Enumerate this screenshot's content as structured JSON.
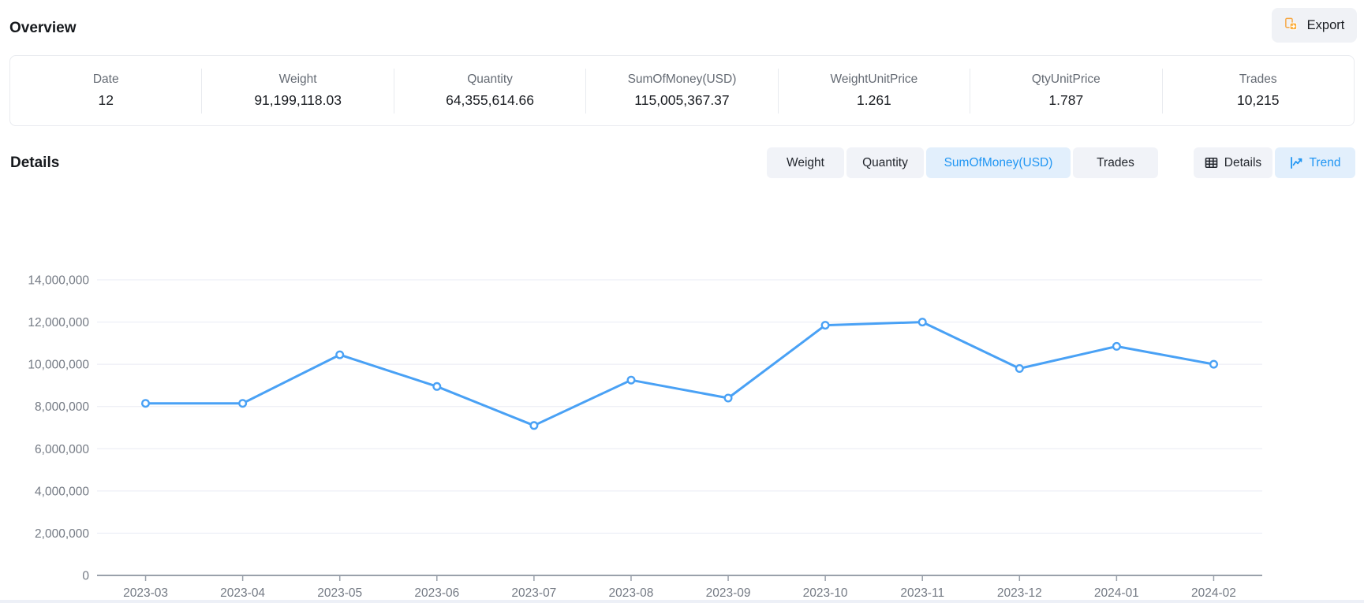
{
  "overview": {
    "title": "Overview",
    "export_label": "Export",
    "stats": [
      {
        "label": "Date",
        "value": "12"
      },
      {
        "label": "Weight",
        "value": "91,199,118.03"
      },
      {
        "label": "Quantity",
        "value": "64,355,614.66"
      },
      {
        "label": "SumOfMoney(USD)",
        "value": "115,005,367.37"
      },
      {
        "label": "WeightUnitPrice",
        "value": "1.261"
      },
      {
        "label": "QtyUnitPrice",
        "value": "1.787"
      },
      {
        "label": "Trades",
        "value": "10,215"
      }
    ]
  },
  "details": {
    "title": "Details",
    "metric_tabs": [
      {
        "label": "Weight",
        "active": false
      },
      {
        "label": "Quantity",
        "active": false
      },
      {
        "label": "SumOfMoney(USD)",
        "active": true
      },
      {
        "label": "Trades",
        "active": false
      }
    ],
    "view_tabs": [
      {
        "label": "Details",
        "icon": "table-icon",
        "active": false
      },
      {
        "label": "Trend",
        "icon": "trend-icon",
        "active": true
      }
    ]
  },
  "colors": {
    "line_blue": "#49a1f5",
    "active_tab_text": "#2196f3",
    "active_tab_bg": "#e2effc",
    "inactive_tab_bg": "#f1f3f8",
    "gridline": "#e9ebf4",
    "axis_line": "#9aa1ab",
    "axis_label": "#747a84",
    "export_icon_orange": "#fbaf3f"
  },
  "chart_data": {
    "type": "line",
    "series_name": "SumOfMoney(USD)",
    "categories": [
      "2023-03",
      "2023-04",
      "2023-05",
      "2023-06",
      "2023-07",
      "2023-08",
      "2023-09",
      "2023-10",
      "2023-11",
      "2023-12",
      "2024-01",
      "2024-02"
    ],
    "values": [
      8150000,
      8150000,
      10450000,
      8950000,
      7100000,
      9250000,
      8400000,
      11850000,
      12000000,
      9800000,
      10850000,
      10000000
    ],
    "title": "",
    "xlabel": "",
    "ylabel": "",
    "ylim": [
      0,
      14000000
    ],
    "y_tick_step": 2000000,
    "grid": true,
    "legend": "none",
    "marker": "hollow-circle"
  }
}
